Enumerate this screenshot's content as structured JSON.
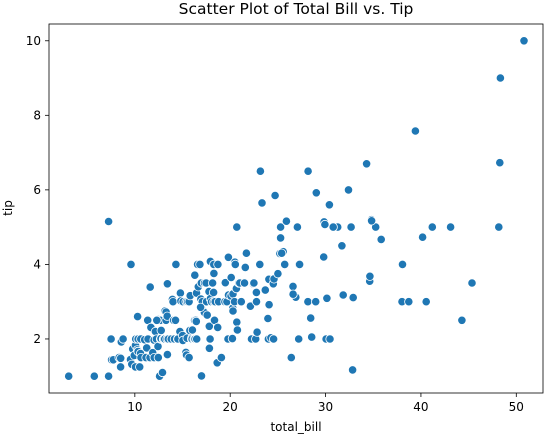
{
  "chart_data": {
    "type": "scatter",
    "title": "Scatter Plot of Total Bill vs. Tip",
    "xlabel": "total_bill",
    "ylabel": "tip",
    "xlim": [
      1.0,
      52.8
    ],
    "ylim": [
      0.55,
      10.45
    ],
    "xticks": [
      10,
      20,
      30,
      40,
      50
    ],
    "yticks": [
      2,
      4,
      6,
      8,
      10
    ],
    "grid": false,
    "legend": "none",
    "marker_color": "#1f77b4",
    "marker_edge_color": "#ffffff",
    "points": [
      [
        3.07,
        1.0
      ],
      [
        5.75,
        1.0
      ],
      [
        7.25,
        1.0
      ],
      [
        7.25,
        5.15
      ],
      [
        7.51,
        2.0
      ],
      [
        7.56,
        1.44
      ],
      [
        7.74,
        1.44
      ],
      [
        8.35,
        1.5
      ],
      [
        8.51,
        1.25
      ],
      [
        8.52,
        1.48
      ],
      [
        8.58,
        1.92
      ],
      [
        8.77,
        2.0
      ],
      [
        9.55,
        1.45
      ],
      [
        9.6,
        4.0
      ],
      [
        9.68,
        1.32
      ],
      [
        9.78,
        1.73
      ],
      [
        9.94,
        1.56
      ],
      [
        10.07,
        1.25
      ],
      [
        10.07,
        1.83
      ],
      [
        10.09,
        2.0
      ],
      [
        10.27,
        1.71
      ],
      [
        10.29,
        2.6
      ],
      [
        10.33,
        1.67
      ],
      [
        10.33,
        2.0
      ],
      [
        10.34,
        1.66
      ],
      [
        10.34,
        2.0
      ],
      [
        10.51,
        1.25
      ],
      [
        10.59,
        1.61
      ],
      [
        10.63,
        2.0
      ],
      [
        10.65,
        1.5
      ],
      [
        11.02,
        1.98
      ],
      [
        11.17,
        1.5
      ],
      [
        11.24,
        1.76
      ],
      [
        11.35,
        2.5
      ],
      [
        11.38,
        2.0
      ],
      [
        11.59,
        1.5
      ],
      [
        11.61,
        3.39
      ],
      [
        11.69,
        2.31
      ],
      [
        11.87,
        1.63
      ],
      [
        12.02,
        1.97
      ],
      [
        12.03,
        1.5
      ],
      [
        12.16,
        2.2
      ],
      [
        12.26,
        2.0
      ],
      [
        12.43,
        1.8
      ],
      [
        12.46,
        1.5
      ],
      [
        12.48,
        2.52
      ],
      [
        12.54,
        2.5
      ],
      [
        12.6,
        1.0
      ],
      [
        12.66,
        2.5
      ],
      [
        12.69,
        2.0
      ],
      [
        12.74,
        2.01
      ],
      [
        12.76,
        2.23
      ],
      [
        12.9,
        1.1
      ],
      [
        13.0,
        2.0
      ],
      [
        13.03,
        2.0
      ],
      [
        13.13,
        2.0
      ],
      [
        13.16,
        2.75
      ],
      [
        13.27,
        2.5
      ],
      [
        13.28,
        2.72
      ],
      [
        13.37,
        2.0
      ],
      [
        13.39,
        2.61
      ],
      [
        13.42,
        3.48
      ],
      [
        13.42,
        1.58
      ],
      [
        13.51,
        2.0
      ],
      [
        13.81,
        2.0
      ],
      [
        13.94,
        3.06
      ],
      [
        14.0,
        3.0
      ],
      [
        14.07,
        2.5
      ],
      [
        14.15,
        2.0
      ],
      [
        14.26,
        2.5
      ],
      [
        14.31,
        4.0
      ],
      [
        14.48,
        2.0
      ],
      [
        14.52,
        2.0
      ],
      [
        14.73,
        2.2
      ],
      [
        14.78,
        3.23
      ],
      [
        14.83,
        3.02
      ],
      [
        15.01,
        2.09
      ],
      [
        15.04,
        1.96
      ],
      [
        15.06,
        3.0
      ],
      [
        15.36,
        1.64
      ],
      [
        15.38,
        3.0
      ],
      [
        15.42,
        1.57
      ],
      [
        15.48,
        2.02
      ],
      [
        15.53,
        3.0
      ],
      [
        15.69,
        1.5
      ],
      [
        15.69,
        3.0
      ],
      [
        15.77,
        2.23
      ],
      [
        15.81,
        3.16
      ],
      [
        15.95,
        2.0
      ],
      [
        15.98,
        2.03
      ],
      [
        16.0,
        2.0
      ],
      [
        16.04,
        2.24
      ],
      [
        16.21,
        2.0
      ],
      [
        16.27,
        2.5
      ],
      [
        16.29,
        3.71
      ],
      [
        16.31,
        2.0
      ],
      [
        16.4,
        2.5
      ],
      [
        16.45,
        2.47
      ],
      [
        16.47,
        3.23
      ],
      [
        16.49,
        2.0
      ],
      [
        16.58,
        4.0
      ],
      [
        16.66,
        3.4
      ],
      [
        16.82,
        4.0
      ],
      [
        16.93,
        3.07
      ],
      [
        16.97,
        3.5
      ],
      [
        16.99,
        1.01
      ],
      [
        17.07,
        3.0
      ],
      [
        17.26,
        2.74
      ],
      [
        17.29,
        2.71
      ],
      [
        17.31,
        3.5
      ],
      [
        17.47,
        3.5
      ],
      [
        17.51,
        3.0
      ],
      [
        17.59,
        2.64
      ],
      [
        17.78,
        3.27
      ],
      [
        17.81,
        2.34
      ],
      [
        17.82,
        1.75
      ],
      [
        17.89,
        2.0
      ],
      [
        17.92,
        4.08
      ],
      [
        17.92,
        3.08
      ],
      [
        18.04,
        3.0
      ],
      [
        18.15,
        3.5
      ],
      [
        18.24,
        3.76
      ],
      [
        18.26,
        3.25
      ],
      [
        18.28,
        4.0
      ],
      [
        18.29,
        3.76
      ],
      [
        18.29,
        3.0
      ],
      [
        18.35,
        2.5
      ],
      [
        18.43,
        3.0
      ],
      [
        18.64,
        1.36
      ],
      [
        18.69,
        2.31
      ],
      [
        18.71,
        4.0
      ],
      [
        18.78,
        3.0
      ],
      [
        19.08,
        1.5
      ],
      [
        19.44,
        3.0
      ],
      [
        19.49,
        3.51
      ],
      [
        19.65,
        3.0
      ],
      [
        19.77,
        2.0
      ],
      [
        19.81,
        4.19
      ],
      [
        19.82,
        3.18
      ],
      [
        20.08,
        3.15
      ],
      [
        20.23,
        2.01
      ],
      [
        20.27,
        2.83
      ],
      [
        20.29,
        2.75
      ],
      [
        20.29,
        3.21
      ],
      [
        20.45,
        3.0
      ],
      [
        20.49,
        4.06
      ],
      [
        20.53,
        4.0
      ],
      [
        20.65,
        3.35
      ],
      [
        20.69,
        2.45
      ],
      [
        20.69,
        5.0
      ],
      [
        20.76,
        2.24
      ],
      [
        20.9,
        3.5
      ],
      [
        21.01,
        3.5
      ],
      [
        21.16,
        3.0
      ],
      [
        21.5,
        3.5
      ],
      [
        21.58,
        3.92
      ],
      [
        21.7,
        4.3
      ],
      [
        22.12,
        2.88
      ],
      [
        22.23,
        2.0
      ],
      [
        22.42,
        3.48
      ],
      [
        22.49,
        3.5
      ],
      [
        22.67,
        2.0
      ],
      [
        22.75,
        3.25
      ],
      [
        22.76,
        3.0
      ],
      [
        22.82,
        2.18
      ],
      [
        23.1,
        4.0
      ],
      [
        23.17,
        6.5
      ],
      [
        23.33,
        5.65
      ],
      [
        23.68,
        3.31
      ],
      [
        23.95,
        2.55
      ],
      [
        24.01,
        2.0
      ],
      [
        24.06,
        3.6
      ],
      [
        24.08,
        2.92
      ],
      [
        24.27,
        2.03
      ],
      [
        24.52,
        3.48
      ],
      [
        24.55,
        2.0
      ],
      [
        24.59,
        3.61
      ],
      [
        24.71,
        5.85
      ],
      [
        25.0,
        3.75
      ],
      [
        25.21,
        4.29
      ],
      [
        25.28,
        5.0
      ],
      [
        25.29,
        4.71
      ],
      [
        25.56,
        4.34
      ],
      [
        25.71,
        4.0
      ],
      [
        25.89,
        5.16
      ],
      [
        26.41,
        1.5
      ],
      [
        26.59,
        3.41
      ],
      [
        26.86,
        3.14
      ],
      [
        26.88,
        3.12
      ],
      [
        27.05,
        5.0
      ],
      [
        27.18,
        2.0
      ],
      [
        27.2,
        4.0
      ],
      [
        27.28,
        4.0
      ],
      [
        28.15,
        3.0
      ],
      [
        28.17,
        6.5
      ],
      [
        28.44,
        2.56
      ],
      [
        28.55,
        2.05
      ],
      [
        28.97,
        3.0
      ],
      [
        29.03,
        5.92
      ],
      [
        29.8,
        4.2
      ],
      [
        29.85,
        5.14
      ],
      [
        29.93,
        5.07
      ],
      [
        30.06,
        2.0
      ],
      [
        30.14,
        3.09
      ],
      [
        30.4,
        5.6
      ],
      [
        30.46,
        2.0
      ],
      [
        31.27,
        5.0
      ],
      [
        31.71,
        4.5
      ],
      [
        31.85,
        3.18
      ],
      [
        32.4,
        6.0
      ],
      [
        32.68,
        5.0
      ],
      [
        32.83,
        1.17
      ],
      [
        32.9,
        3.11
      ],
      [
        34.3,
        6.7
      ],
      [
        34.63,
        3.55
      ],
      [
        34.65,
        3.68
      ],
      [
        34.81,
        5.2
      ],
      [
        35.26,
        5.0
      ],
      [
        35.83,
        4.67
      ],
      [
        38.01,
        3.0
      ],
      [
        38.07,
        4.0
      ],
      [
        38.73,
        3.0
      ],
      [
        39.42,
        7.58
      ],
      [
        40.17,
        4.73
      ],
      [
        40.55,
        3.0
      ],
      [
        41.19,
        5.0
      ],
      [
        43.11,
        5.0
      ],
      [
        44.3,
        2.5
      ],
      [
        45.35,
        3.5
      ],
      [
        48.17,
        5.0
      ],
      [
        48.27,
        6.73
      ],
      [
        48.33,
        9.0
      ],
      [
        50.81,
        10.0
      ],
      [
        34.83,
        5.17
      ],
      [
        25.4,
        4.3
      ],
      [
        26.6,
        3.2
      ],
      [
        30.8,
        5.0
      ],
      [
        16.9,
        2.85
      ],
      [
        12.3,
        2.5
      ],
      [
        20.1,
        3.65
      ]
    ]
  }
}
